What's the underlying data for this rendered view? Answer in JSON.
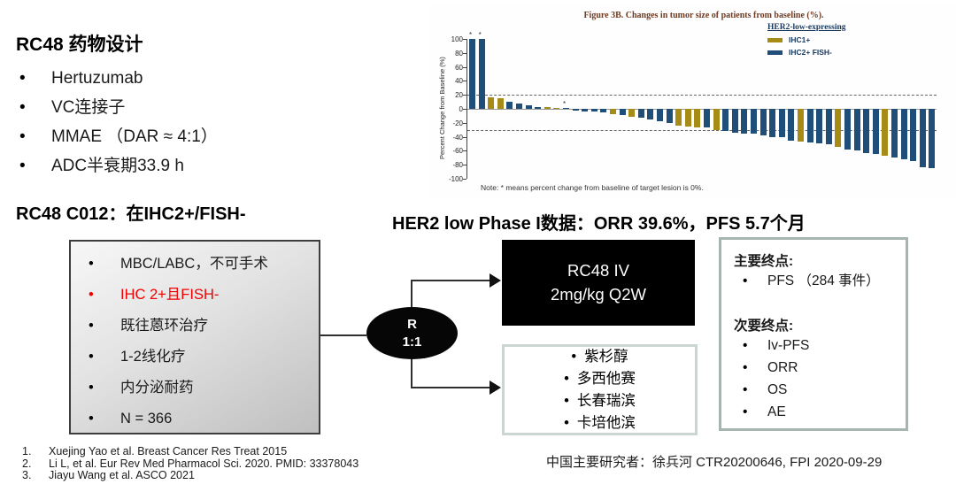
{
  "slide": {
    "drug_design": {
      "title": "RC48 药物设计",
      "bullets": [
        "Hertuzumab",
        "VC连接子",
        "MMAE （DAR ≈ 4:1）",
        "ADC半衰期33.9 h"
      ]
    },
    "left_heading": "RC48 C012：在IHC2+/FISH-",
    "right_heading": "HER2 low Phase I数据：ORR 39.6%，PFS 5.7个月",
    "enrollment_box": {
      "items": [
        {
          "text": "MBC/LABC，不可手术",
          "red": false
        },
        {
          "text": "IHC 2+且FISH-",
          "red": true
        },
        {
          "text": "既往蒽环治疗",
          "red": false
        },
        {
          "text": "1-2线化疗",
          "red": false
        },
        {
          "text": "内分泌耐药",
          "red": false
        },
        {
          "text": "N = 366",
          "red": false
        }
      ]
    },
    "randomization": {
      "line1": "R",
      "line2": "1:1"
    },
    "arm1": {
      "line1": "RC48 IV",
      "line2": "2mg/kg Q2W"
    },
    "arm2": {
      "items": [
        "紫杉醇",
        "多西他赛",
        "长春瑞滨",
        "卡培他滨"
      ]
    },
    "endpoints": {
      "primary_label": "主要终点:",
      "primary_items": [
        "PFS （284 事件）"
      ],
      "secondary_label": "次要终点:",
      "secondary_items": [
        "Iv-PFS",
        "ORR",
        "OS",
        "AE"
      ]
    },
    "references": [
      {
        "num": "1.",
        "text": "Xuejing Yao et al. Breast Cancer Res Treat 2015"
      },
      {
        "num": "2.",
        "text": "Li L, et al. Eur Rev Med Pharmacol Sci. 2020. PMID: 33378043"
      },
      {
        "num": "3.",
        "text": "Jiayu Wang et al. ASCO 2021"
      }
    ],
    "footer_right": "中国主要研究者：徐兵河 CTR20200646, FPI 2020-09-29"
  },
  "colors": {
    "bar_blue": "#1f4e79",
    "bar_gold": "#a68b17",
    "legend_navy": "#17375d",
    "title_maroon": "#6e3b23",
    "highlight_red": "#f00000"
  },
  "chart_data": {
    "type": "bar",
    "title": "Figure 3B. Changes in tumor size of patients from baseline (%).",
    "xlabel": "",
    "ylabel": "Percent Change from Baseline (%)",
    "ylim": [
      -100,
      100
    ],
    "yticks": [
      100,
      80,
      60,
      40,
      20,
      0,
      -20,
      -40,
      -60,
      -80,
      -100
    ],
    "reference_lines": [
      20,
      -30
    ],
    "grid": false,
    "legend_position": "top-right",
    "note": "Note: * means percent change from baseline of target lesion is 0%.",
    "legend": {
      "title": "HER2-low-expressing",
      "entries": [
        {
          "label": "IHC1+",
          "color": "#a68b17"
        },
        {
          "label": "IHC2+ FISH-",
          "color": "#1f4e79"
        }
      ]
    },
    "series_colors": {
      "IHC1+": "#a68b17",
      "IHC2+ FISH-": "#1f4e79"
    },
    "bars": [
      {
        "value": 100,
        "group": "IHC2+ FISH-",
        "star": true
      },
      {
        "value": 100,
        "group": "IHC2+ FISH-",
        "star": true
      },
      {
        "value": 17,
        "group": "IHC1+"
      },
      {
        "value": 15,
        "group": "IHC1+"
      },
      {
        "value": 10,
        "group": "IHC2+ FISH-"
      },
      {
        "value": 8,
        "group": "IHC2+ FISH-"
      },
      {
        "value": 5,
        "group": "IHC2+ FISH-"
      },
      {
        "value": 3,
        "group": "IHC2+ FISH-"
      },
      {
        "value": 2,
        "group": "IHC1+"
      },
      {
        "value": 1,
        "group": "IHC1+"
      },
      {
        "value": 0,
        "group": "IHC2+ FISH-",
        "star": true
      },
      {
        "value": -3,
        "group": "IHC2+ FISH-"
      },
      {
        "value": -4,
        "group": "IHC2+ FISH-"
      },
      {
        "value": -4,
        "group": "IHC2+ FISH-"
      },
      {
        "value": -5,
        "group": "IHC2+ FISH-"
      },
      {
        "value": -8,
        "group": "IHC1+"
      },
      {
        "value": -9,
        "group": "IHC2+ FISH-"
      },
      {
        "value": -11,
        "group": "IHC1+"
      },
      {
        "value": -13,
        "group": "IHC2+ FISH-"
      },
      {
        "value": -15,
        "group": "IHC2+ FISH-"
      },
      {
        "value": -18,
        "group": "IHC2+ FISH-"
      },
      {
        "value": -20,
        "group": "IHC2+ FISH-"
      },
      {
        "value": -24,
        "group": "IHC1+"
      },
      {
        "value": -25,
        "group": "IHC1+"
      },
      {
        "value": -26,
        "group": "IHC1+"
      },
      {
        "value": -27,
        "group": "IHC2+ FISH-"
      },
      {
        "value": -30,
        "group": "IHC1+"
      },
      {
        "value": -32,
        "group": "IHC2+ FISH-"
      },
      {
        "value": -34,
        "group": "IHC2+ FISH-"
      },
      {
        "value": -35,
        "group": "IHC2+ FISH-"
      },
      {
        "value": -36,
        "group": "IHC2+ FISH-"
      },
      {
        "value": -38,
        "group": "IHC2+ FISH-"
      },
      {
        "value": -40,
        "group": "IHC2+ FISH-"
      },
      {
        "value": -41,
        "group": "IHC2+ FISH-"
      },
      {
        "value": -45,
        "group": "IHC2+ FISH-"
      },
      {
        "value": -47,
        "group": "IHC1+"
      },
      {
        "value": -48,
        "group": "IHC2+ FISH-"
      },
      {
        "value": -49,
        "group": "IHC2+ FISH-"
      },
      {
        "value": -51,
        "group": "IHC2+ FISH-"
      },
      {
        "value": -55,
        "group": "IHC1+"
      },
      {
        "value": -58,
        "group": "IHC2+ FISH-"
      },
      {
        "value": -60,
        "group": "IHC2+ FISH-"
      },
      {
        "value": -63,
        "group": "IHC2+ FISH-"
      },
      {
        "value": -65,
        "group": "IHC2+ FISH-"
      },
      {
        "value": -67,
        "group": "IHC1+"
      },
      {
        "value": -69,
        "group": "IHC2+ FISH-"
      },
      {
        "value": -72,
        "group": "IHC2+ FISH-"
      },
      {
        "value": -75,
        "group": "IHC2+ FISH-"
      },
      {
        "value": -83,
        "group": "IHC2+ FISH-"
      },
      {
        "value": -85,
        "group": "IHC2+ FISH-"
      }
    ]
  }
}
